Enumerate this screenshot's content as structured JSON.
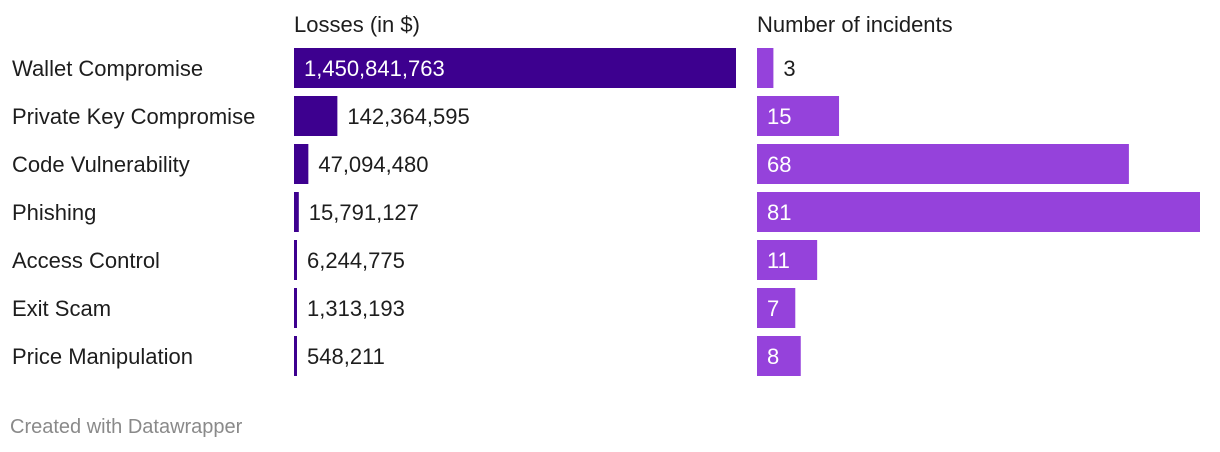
{
  "footer": "Created with Datawrapper",
  "chart_data": {
    "type": "bar",
    "orientation": "horizontal",
    "categories": [
      "Wallet Compromise",
      "Private Key Compromise",
      "Code Vulnerability",
      "Phishing",
      "Access Control",
      "Exit Scam",
      "Price Manipulation"
    ],
    "series": [
      {
        "name": "Losses (in $)",
        "color": "#3d008f",
        "values": [
          1450841763,
          142364595,
          47094480,
          15791127,
          6244775,
          1313193,
          548211
        ],
        "labels": [
          "1,450,841,763",
          "142,364,595",
          "47,094,480",
          "15,791,127",
          "6,244,775",
          "1,313,193",
          "548,211"
        ],
        "xlim": [
          0,
          1450841763
        ]
      },
      {
        "name": "Number of incidents",
        "color": "#9542db",
        "values": [
          3,
          15,
          68,
          81,
          11,
          7,
          8
        ],
        "labels": [
          "3",
          "15",
          "68",
          "81",
          "11",
          "7",
          "8"
        ],
        "xlim": [
          0,
          81
        ]
      }
    ],
    "grid": false,
    "legend": "column headers"
  }
}
